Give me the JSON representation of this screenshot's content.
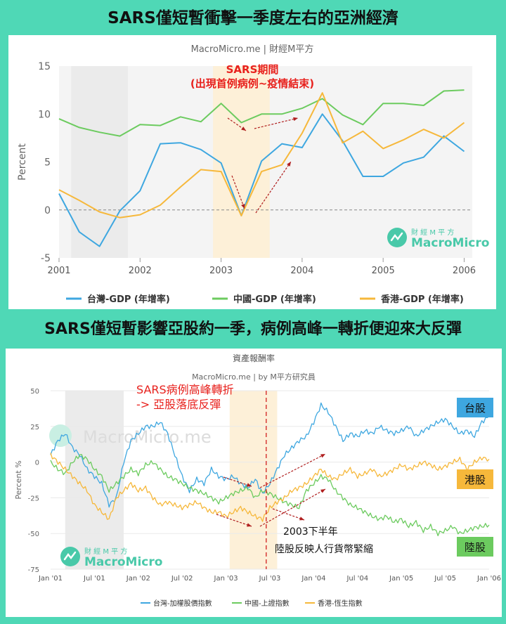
{
  "top_title": "SARS僅短暫衝擊一季度左右的亞洲經濟",
  "bottom_title": "SARS僅短暫影響亞股約一季，病例高峰一轉折便迎來大反彈",
  "colors": {
    "background": "#4fd8b6",
    "taiwan": "#3ea7e0",
    "china": "#6ccb5f",
    "hongkong": "#f6b83b",
    "highlight": "#fdf0d8",
    "recession": "#ebebeb",
    "annotation": "#e8211d"
  },
  "chart_data": [
    {
      "type": "line",
      "source": "MacroMicro.me | 財經M平方",
      "ylabel": "Percent",
      "ylim": [
        -5,
        15
      ],
      "yticks": [
        15,
        10,
        5,
        0,
        -5
      ],
      "xlim": [
        2001,
        2006.1
      ],
      "xticks": [
        "2001",
        "2002",
        "2003",
        "2004",
        "2005",
        "2006"
      ],
      "shaded_gray": [
        2001.15,
        2001.85
      ],
      "shaded_highlight": [
        2002.9,
        2003.6
      ],
      "annotation": {
        "line1": "SARS期間",
        "line2": "(出現首例病例~疫情結束)"
      },
      "logo": {
        "small": "財 經 M 平 方",
        "big": "MacroMicro"
      },
      "series": [
        {
          "name": "台灣-GDP (年增率)",
          "color": "#3ea7e0",
          "x": [
            2001.0,
            2001.25,
            2001.5,
            2001.75,
            2002.0,
            2002.25,
            2002.5,
            2002.75,
            2003.0,
            2003.25,
            2003.5,
            2003.75,
            2004.0,
            2004.25,
            2004.5,
            2004.75,
            2005.0,
            2005.25,
            2005.5,
            2005.75,
            2006.0
          ],
          "y": [
            1.7,
            -2.3,
            -3.8,
            -0.1,
            2.0,
            6.9,
            7.0,
            6.3,
            4.9,
            -0.6,
            5.1,
            6.9,
            6.5,
            10.0,
            7.2,
            3.5,
            3.5,
            4.9,
            5.5,
            7.7,
            6.1
          ]
        },
        {
          "name": "中國-GDP (年增率)",
          "color": "#6ccb5f",
          "x": [
            2001.0,
            2001.25,
            2001.5,
            2001.75,
            2002.0,
            2002.25,
            2002.5,
            2002.75,
            2003.0,
            2003.25,
            2003.5,
            2003.75,
            2004.0,
            2004.25,
            2004.5,
            2004.75,
            2005.0,
            2005.25,
            2005.5,
            2005.75,
            2006.0
          ],
          "y": [
            9.5,
            8.6,
            8.1,
            7.7,
            8.9,
            8.8,
            9.7,
            9.2,
            11.1,
            9.1,
            10.0,
            10.0,
            10.6,
            11.6,
            9.9,
            8.9,
            11.1,
            11.1,
            10.9,
            12.4,
            12.5
          ]
        },
        {
          "name": "香港-GDP (年增率)",
          "color": "#f6b83b",
          "x": [
            2001.0,
            2001.25,
            2001.5,
            2001.75,
            2002.0,
            2002.25,
            2002.5,
            2002.75,
            2003.0,
            2003.25,
            2003.5,
            2003.75,
            2004.0,
            2004.25,
            2004.5,
            2004.75,
            2005.0,
            2005.25,
            2005.5,
            2005.75,
            2006.0
          ],
          "y": [
            2.1,
            1.0,
            -0.2,
            -0.8,
            -0.5,
            0.5,
            2.4,
            4.2,
            4.0,
            -0.6,
            4.0,
            4.7,
            8.0,
            12.2,
            7.0,
            8.2,
            6.4,
            7.3,
            8.4,
            7.5,
            9.1
          ]
        }
      ]
    },
    {
      "type": "line",
      "chart_title": "資產報酬率",
      "source": "MacroMicro.me | by M平方研究員",
      "watermark": "MacroMicro.me",
      "ylabel": "Percent %",
      "ylim": [
        -75,
        50
      ],
      "yticks": [
        50,
        25,
        0,
        -25,
        -50,
        -75
      ],
      "xlim": [
        0,
        60
      ],
      "xticks": [
        "Jan '01",
        "Jul '01",
        "Jan '02",
        "Jul '02",
        "Jan '03",
        "Jul '03",
        "Jan '04",
        "Jul '04",
        "Jan '05",
        "Jul '05",
        "Jan '06"
      ],
      "shaded_gray": [
        2,
        10
      ],
      "shaded_highlight": [
        24.5,
        31
      ],
      "peak_line": 29.5,
      "annotation": {
        "line1": "SARS病例高峰轉折",
        "line2": "-> 亞股落底反彈"
      },
      "note": {
        "line1": "2003下半年",
        "line2": "陸股反映人行貨幣緊縮"
      },
      "labels": {
        "taiwan": "台股",
        "hongkong": "港股",
        "china": "陸股"
      },
      "logo": {
        "small": "財 經 M 平 方",
        "big": "MacroMicro"
      },
      "series": [
        {
          "name": "台灣-加權股價指數",
          "color": "#3ea7e0",
          "x": [
            0,
            1,
            2,
            3,
            4,
            5,
            6,
            7,
            8,
            9,
            10,
            11,
            12,
            13,
            14,
            15,
            16,
            17,
            18,
            19,
            20,
            21,
            22,
            23,
            24,
            25,
            26,
            27,
            28,
            29,
            30,
            31,
            32,
            33,
            34,
            35,
            36,
            37,
            38,
            39,
            40,
            41,
            42,
            43,
            44,
            45,
            46,
            47,
            48,
            49,
            50,
            51,
            52,
            53,
            54,
            55,
            56,
            57,
            58,
            59,
            60
          ],
          "y": [
            5,
            15,
            20,
            10,
            5,
            -5,
            -10,
            -15,
            -30,
            -25,
            0,
            15,
            20,
            25,
            25,
            28,
            20,
            5,
            -10,
            -20,
            -12,
            -15,
            -5,
            -10,
            -12,
            -10,
            -15,
            -18,
            -12,
            -22,
            -15,
            -5,
            5,
            10,
            15,
            18,
            28,
            40,
            35,
            25,
            15,
            20,
            18,
            22,
            20,
            25,
            22,
            20,
            22,
            25,
            18,
            22,
            25,
            28,
            30,
            25,
            20,
            22,
            18,
            28,
            32
          ]
        },
        {
          "name": "中國-上證指數",
          "color": "#6ccb5f",
          "x": [
            0,
            1,
            2,
            3,
            4,
            5,
            6,
            7,
            8,
            9,
            10,
            11,
            12,
            13,
            14,
            15,
            16,
            17,
            18,
            19,
            20,
            21,
            22,
            23,
            24,
            25,
            26,
            27,
            28,
            29,
            30,
            31,
            32,
            33,
            34,
            35,
            36,
            37,
            38,
            39,
            40,
            41,
            42,
            43,
            44,
            45,
            46,
            47,
            48,
            49,
            50,
            51,
            52,
            53,
            54,
            55,
            56,
            57,
            58,
            59,
            60
          ],
          "y": [
            0,
            -5,
            -8,
            0,
            5,
            2,
            -5,
            -10,
            -20,
            -15,
            -10,
            -5,
            -8,
            -2,
            0,
            -5,
            -10,
            -12,
            -15,
            -18,
            -20,
            -22,
            -25,
            -28,
            -25,
            -22,
            -20,
            -18,
            -25,
            -20,
            -22,
            -25,
            -28,
            -30,
            -32,
            -20,
            -15,
            -10,
            -12,
            -20,
            -25,
            -30,
            -32,
            -35,
            -38,
            -40,
            -38,
            -42,
            -40,
            -45,
            -42,
            -48,
            -45,
            -50,
            -48,
            -45,
            -50,
            -48,
            -46,
            -45,
            -44
          ]
        },
        {
          "name": "香港-恆生指數",
          "color": "#f6b83b",
          "x": [
            0,
            1,
            2,
            3,
            4,
            5,
            6,
            7,
            8,
            9,
            10,
            11,
            12,
            13,
            14,
            15,
            16,
            17,
            18,
            19,
            20,
            21,
            22,
            23,
            24,
            25,
            26,
            27,
            28,
            29,
            30,
            31,
            32,
            33,
            34,
            35,
            36,
            37,
            38,
            39,
            40,
            41,
            42,
            43,
            44,
            45,
            46,
            47,
            48,
            49,
            50,
            51,
            52,
            53,
            54,
            55,
            56,
            57,
            58,
            59,
            60
          ],
          "y": [
            5,
            0,
            -5,
            -10,
            -15,
            -20,
            -30,
            -35,
            -40,
            -25,
            -20,
            -15,
            -20,
            -18,
            -25,
            -30,
            -28,
            -30,
            -32,
            -30,
            -28,
            -32,
            -35,
            -35,
            -38,
            -35,
            -32,
            -35,
            -38,
            -40,
            -32,
            -28,
            -25,
            -20,
            -18,
            -15,
            -10,
            -5,
            -10,
            -12,
            -8,
            -5,
            -10,
            -8,
            -5,
            -10,
            -8,
            -5,
            -2,
            -5,
            -3,
            0,
            -2,
            -5,
            -3,
            0,
            2,
            -5,
            0,
            3,
            2
          ]
        }
      ]
    }
  ]
}
